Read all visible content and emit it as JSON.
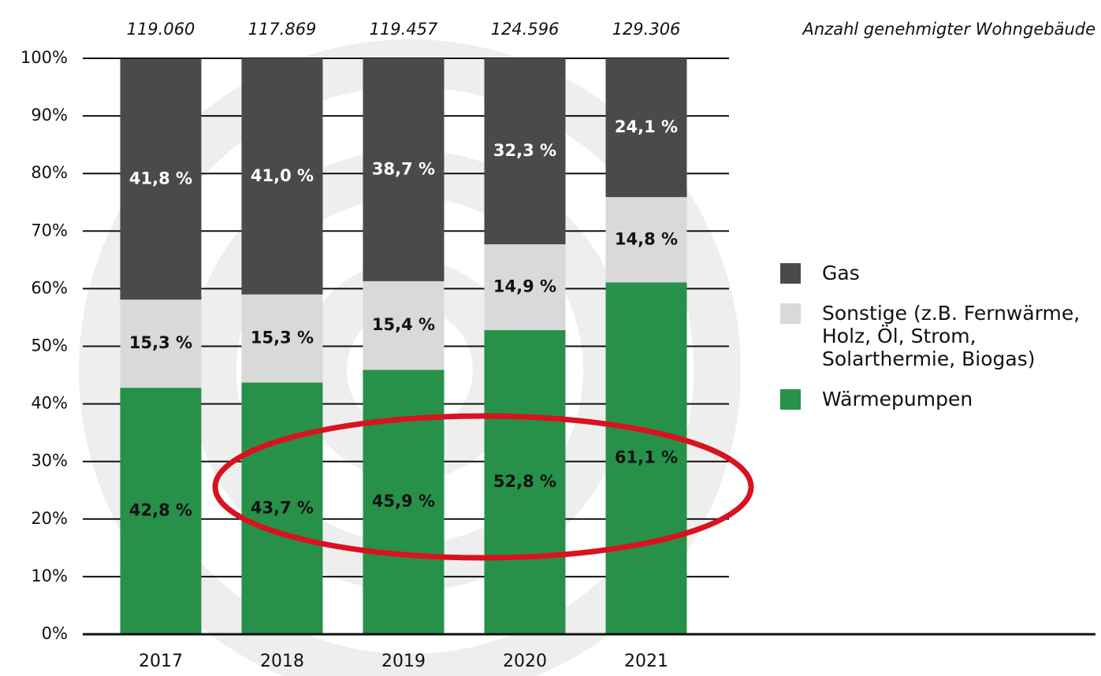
{
  "chart_data": {
    "type": "stacked_bar",
    "categories": [
      "2017",
      "2018",
      "2019",
      "2020",
      "2021"
    ],
    "series": [
      {
        "name": "Wärmepumpen",
        "color": "#27914a",
        "label_color": "#111111",
        "values": [
          42.8,
          43.7,
          45.9,
          52.8,
          61.1
        ],
        "value_labels": [
          "42,8 %",
          "43,7 %",
          "45,9 %",
          "52,8 %",
          "61,1 %"
        ]
      },
      {
        "name": "Sonstige (z.B. Fernwärme, Holz, Öl, Strom, Solarthermie, Biogas)",
        "color": "#d8d9d8",
        "label_color": "#111111",
        "values": [
          15.3,
          15.3,
          15.4,
          14.9,
          14.8
        ],
        "value_labels": [
          "15,3 %",
          "15,3 %",
          "15,4 %",
          "14,9 %",
          "14,8 %"
        ]
      },
      {
        "name": "Gas",
        "color": "#4a4a49",
        "label_color": "#ffffff",
        "values": [
          41.8,
          41.0,
          38.7,
          32.3,
          24.1
        ],
        "value_labels": [
          "41,8 %",
          "41,0 %",
          "38,7 %",
          "32,3 %",
          "24,1 %"
        ]
      }
    ],
    "totals": {
      "label": "Anzahl genehmigter Wohngebäude",
      "values": [
        119060,
        117869,
        119457,
        124596,
        129306
      ],
      "value_labels": [
        "119.060",
        "117.869",
        "119.457",
        "124.596",
        "129.306"
      ]
    },
    "ylim": [
      0,
      100
    ],
    "yticks": [
      {
        "value": 0,
        "label": "0%"
      },
      {
        "value": 10,
        "label": "10%"
      },
      {
        "value": 20,
        "label": "20%"
      },
      {
        "value": 30,
        "label": "30%"
      },
      {
        "value": 40,
        "label": "40%"
      },
      {
        "value": 50,
        "label": "50%"
      },
      {
        "value": 60,
        "label": "60%"
      },
      {
        "value": 70,
        "label": "70%"
      },
      {
        "value": 80,
        "label": "80%"
      },
      {
        "value": 90,
        "label": "90%"
      },
      {
        "value": 100,
        "label": "100%"
      }
    ],
    "grid": true,
    "legend": "right"
  }
}
